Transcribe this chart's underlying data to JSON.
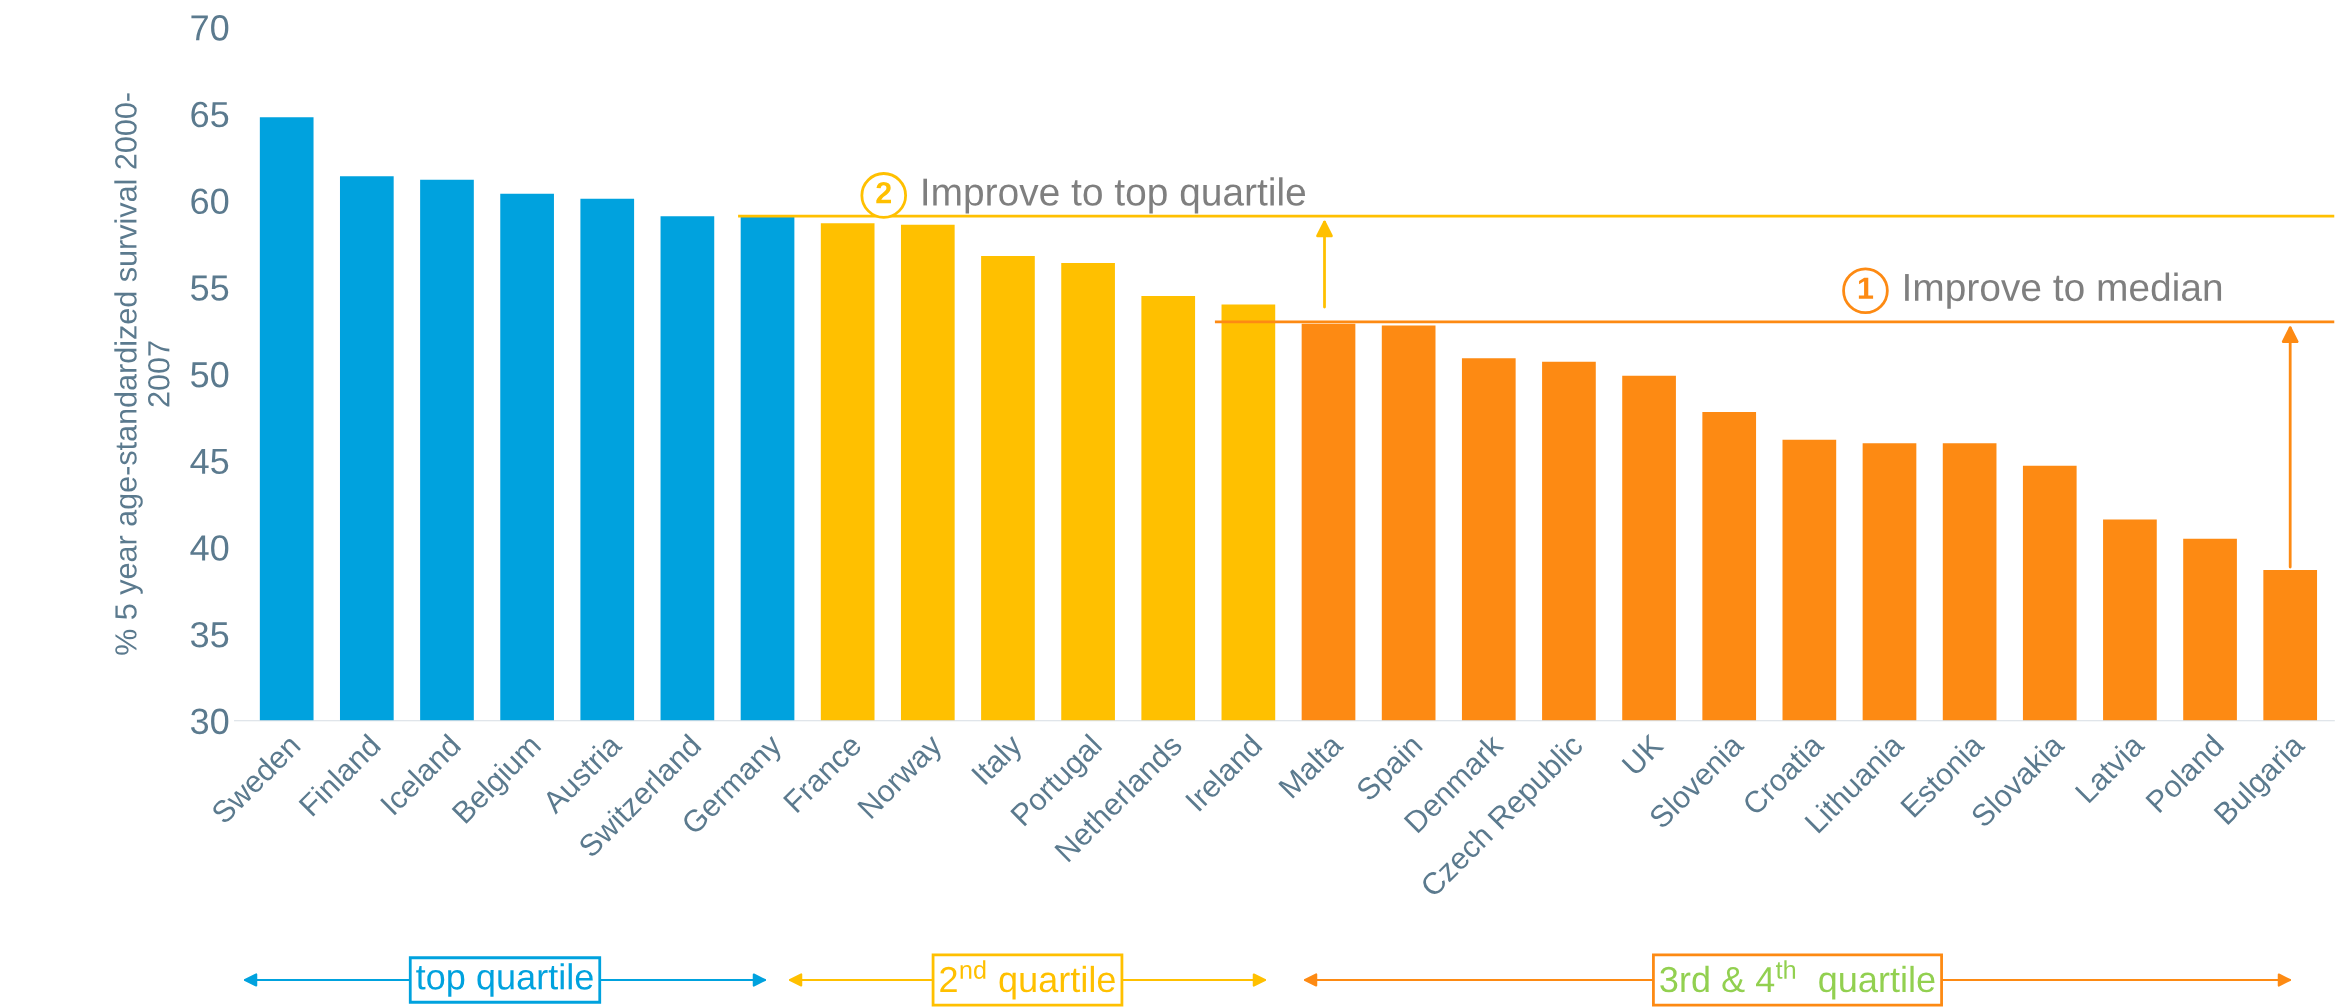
{
  "chart_data": {
    "type": "bar",
    "ylabel": "% 5 year age-standardized survival 2000-\n2007",
    "categories": [
      "Sweden",
      "Finland",
      "Iceland",
      "Belgium",
      "Austria",
      "Switzerland",
      "Germany",
      "France",
      "Norway",
      "Italy",
      "Portugal",
      "Netherlands",
      "Ireland",
      "Malta",
      "Spain",
      "Denmark",
      "Czech Republic",
      "UK",
      "Slovenia",
      "Croatia",
      "Lithuania",
      "Estonia",
      "Slovakia",
      "Latvia",
      "Poland",
      "Bulgaria"
    ],
    "values": [
      64.8,
      61.4,
      61.2,
      60.4,
      60.1,
      59.1,
      59.1,
      58.7,
      58.6,
      56.8,
      56.4,
      54.5,
      54.0,
      52.9,
      52.8,
      50.9,
      50.7,
      49.9,
      47.8,
      46.2,
      46.0,
      46.0,
      44.7,
      41.6,
      40.5,
      38.7
    ],
    "colors": [
      "#00a2de",
      "#00a2de",
      "#00a2de",
      "#00a2de",
      "#00a2de",
      "#00a2de",
      "#00a2de",
      "#ffc000",
      "#ffc000",
      "#ffc000",
      "#ffc000",
      "#ffc000",
      "#ffc000",
      "#fd8a13",
      "#fd8a13",
      "#fd8a13",
      "#fd8a13",
      "#fd8a13",
      "#fd8a13",
      "#fd8a13",
      "#fd8a13",
      "#fd8a13",
      "#fd8a13",
      "#fd8a13",
      "#fd8a13",
      "#fd8a13"
    ],
    "ylim": [
      30,
      70
    ],
    "yticks": [
      30,
      35,
      40,
      45,
      50,
      55,
      60,
      65,
      70
    ],
    "ref_lines": [
      {
        "axis": "y",
        "value": 59.1,
        "label": "Improve to top quartile",
        "color": "#ffc000"
      },
      {
        "axis": "y",
        "value": 53.0,
        "label": "Improve to median",
        "color": "#fd8a13"
      }
    ],
    "annotations": [
      "2",
      "1",
      "top quartile",
      "2$^{nd}$ quartile",
      "3rd & 4$^{th}$  quartile"
    ],
    "grid": false,
    "legend": false
  }
}
